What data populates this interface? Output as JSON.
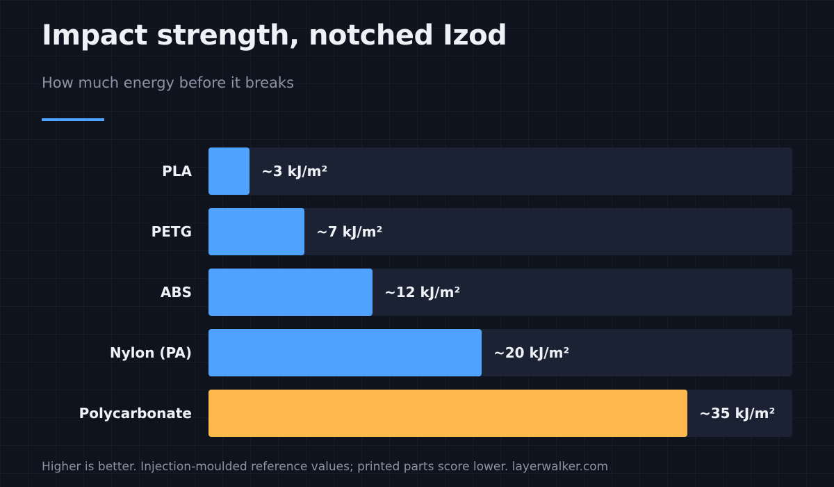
{
  "title": "Impact strength, notched Izod",
  "subtitle": "How much energy before it breaks",
  "footer": "Higher is better. Injection-moulded reference values; printed parts score lower. layerwalker.com",
  "colors": {
    "background": "#0f131d",
    "track": "#1a2233",
    "bar": "#4fa3ff",
    "highlight": "#ffb84d",
    "text": "#eef1f6",
    "muted": "#8b94a6"
  },
  "chart_data": {
    "type": "bar",
    "orientation": "horizontal",
    "categories": [
      "PLA",
      "PETG",
      "ABS",
      "Nylon (PA)",
      "Polycarbonate"
    ],
    "values": [
      3,
      7,
      12,
      20,
      35
    ],
    "data_labels": [
      "~3 kJ/m²",
      "~7 kJ/m²",
      "~12 kJ/m²",
      "~20 kJ/m²",
      "~35 kJ/m²"
    ],
    "highlighted_category": "Polycarbonate",
    "unit": "kJ/m²",
    "xlim": [
      0,
      42.7
    ],
    "title": "Impact strength, notched Izod",
    "subtitle": "How much energy before it breaks",
    "grid": false,
    "legend": "none"
  }
}
